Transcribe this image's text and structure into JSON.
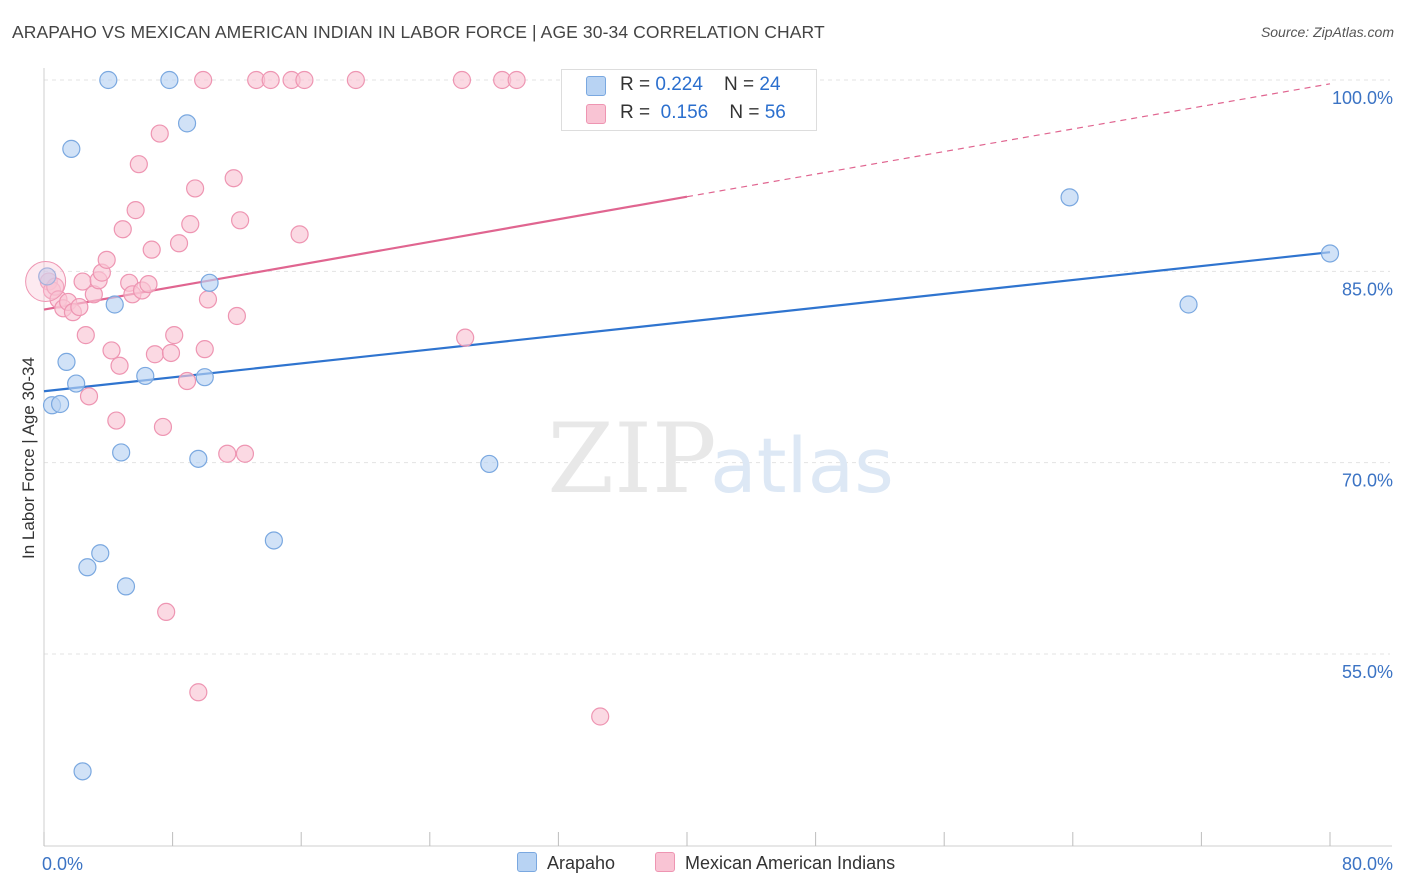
{
  "title": "ARAPAHO VS MEXICAN AMERICAN INDIAN IN LABOR FORCE | AGE 30-34 CORRELATION CHART",
  "source": "Source: ZipAtlas.com",
  "watermark": {
    "zip": "ZIP",
    "atlas": "atlas"
  },
  "legend": {
    "arapaho": {
      "r_label": "R = ",
      "r_value": "0.224",
      "n_label": "N = ",
      "n_value": "24"
    },
    "mexican": {
      "r_label": "R = ",
      "r_value": "0.156",
      "n_label": "N = ",
      "n_value": "56"
    }
  },
  "bottom_legend": {
    "arapaho": "Arapaho",
    "mexican": "Mexican American Indians"
  },
  "colors": {
    "arapaho_fill": "#b8d3f3",
    "arapaho_stroke": "#7aa8e0",
    "arapaho_line": "#2f74cf",
    "mexican_fill": "#f9c4d4",
    "mexican_stroke": "#ee95b2",
    "mexican_line": "#e06590",
    "tick_label": "#3b73c4",
    "grid": "#e3e3e3"
  },
  "chart_data": {
    "type": "scatter",
    "title": "ARAPAHO VS MEXICAN AMERICAN INDIAN IN LABOR FORCE | AGE 30-34 CORRELATION CHART",
    "xlabel": "",
    "ylabel": "In Labor Force | Age 30-34",
    "xlim": [
      0,
      80
    ],
    "ylim": [
      42,
      103
    ],
    "x_tick_labels": [
      {
        "value": 0,
        "label": "0.0%"
      },
      {
        "value": 80,
        "label": "80.0%"
      }
    ],
    "x_minor_ticks": [
      0,
      8,
      16,
      24,
      32,
      40,
      48,
      56,
      64,
      72,
      80
    ],
    "y_ticks": [
      {
        "value": 100,
        "label": "100.0%"
      },
      {
        "value": 85,
        "label": "85.0%"
      },
      {
        "value": 70,
        "label": "70.0%"
      },
      {
        "value": 55,
        "label": "55.0%"
      }
    ],
    "grid": true,
    "legend_position": "top-center",
    "series": [
      {
        "name": "Arapaho",
        "points": [
          [
            0.2,
            84.6
          ],
          [
            0.5,
            74.5
          ],
          [
            1.0,
            74.6
          ],
          [
            1.4,
            77.9
          ],
          [
            1.7,
            94.6
          ],
          [
            2.0,
            76.2
          ],
          [
            2.4,
            45.8
          ],
          [
            2.7,
            61.8
          ],
          [
            3.5,
            62.9
          ],
          [
            4.0,
            100.0
          ],
          [
            4.4,
            82.4
          ],
          [
            4.8,
            70.8
          ],
          [
            5.1,
            60.3
          ],
          [
            6.3,
            76.8
          ],
          [
            7.8,
            100.0
          ],
          [
            8.9,
            96.6
          ],
          [
            9.6,
            70.3
          ],
          [
            10.0,
            76.7
          ],
          [
            10.3,
            84.1
          ],
          [
            14.3,
            63.9
          ],
          [
            27.7,
            69.9
          ],
          [
            63.8,
            90.8
          ],
          [
            71.2,
            82.4
          ],
          [
            80.0,
            86.4
          ]
        ],
        "trend": {
          "x0": 0,
          "y0": 75.6,
          "x1": 80,
          "y1": 86.5,
          "solid_to": 80
        }
      },
      {
        "name": "Mexican American Indians",
        "points": [
          [
            0.3,
            84.2
          ],
          [
            0.5,
            83.5
          ],
          [
            0.7,
            83.8
          ],
          [
            0.9,
            82.8
          ],
          [
            1.2,
            82.1
          ],
          [
            1.5,
            82.6
          ],
          [
            1.8,
            81.8
          ],
          [
            2.2,
            82.2
          ],
          [
            2.4,
            84.2
          ],
          [
            2.6,
            80.0
          ],
          [
            2.8,
            75.2
          ],
          [
            3.1,
            83.2
          ],
          [
            3.4,
            84.3
          ],
          [
            3.6,
            84.9
          ],
          [
            3.9,
            85.9
          ],
          [
            4.2,
            78.8
          ],
          [
            4.5,
            73.3
          ],
          [
            4.7,
            77.6
          ],
          [
            4.9,
            88.3
          ],
          [
            5.3,
            84.1
          ],
          [
            5.5,
            83.2
          ],
          [
            5.7,
            89.8
          ],
          [
            5.9,
            93.4
          ],
          [
            6.1,
            83.5
          ],
          [
            6.5,
            84.0
          ],
          [
            6.7,
            86.7
          ],
          [
            6.9,
            78.5
          ],
          [
            7.2,
            95.8
          ],
          [
            7.4,
            72.8
          ],
          [
            7.6,
            58.3
          ],
          [
            7.9,
            78.6
          ],
          [
            8.1,
            80.0
          ],
          [
            8.4,
            87.2
          ],
          [
            8.9,
            76.4
          ],
          [
            9.1,
            88.7
          ],
          [
            9.4,
            91.5
          ],
          [
            9.6,
            52.0
          ],
          [
            9.9,
            100.0
          ],
          [
            10.0,
            78.9
          ],
          [
            10.2,
            82.8
          ],
          [
            11.4,
            70.7
          ],
          [
            11.8,
            92.3
          ],
          [
            12.0,
            81.5
          ],
          [
            12.2,
            89.0
          ],
          [
            12.5,
            70.7
          ],
          [
            13.2,
            100.0
          ],
          [
            14.1,
            100.0
          ],
          [
            15.4,
            100.0
          ],
          [
            15.9,
            87.9
          ],
          [
            16.2,
            100.0
          ],
          [
            19.4,
            100.0
          ],
          [
            26.0,
            100.0
          ],
          [
            26.2,
            79.8
          ],
          [
            28.5,
            100.0
          ],
          [
            29.4,
            100.0
          ],
          [
            34.6,
            50.1
          ]
        ],
        "trend": {
          "x0": 0,
          "y0": 82.0,
          "x1": 80,
          "y1": 99.7,
          "solid_to": 40
        }
      }
    ]
  }
}
